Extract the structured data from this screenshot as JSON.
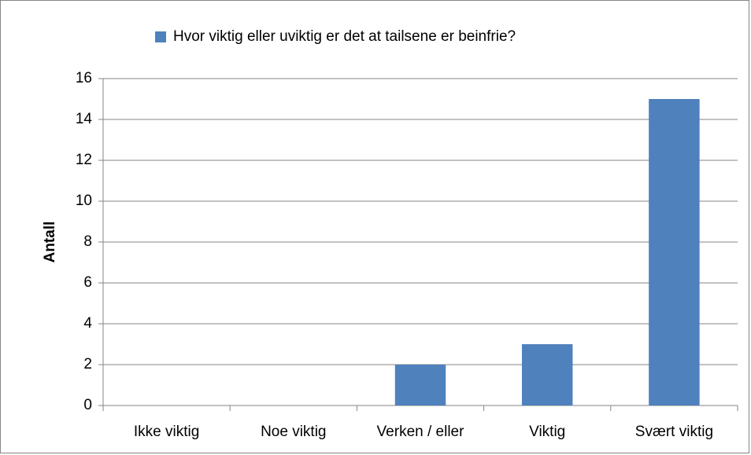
{
  "chart_data": {
    "type": "bar",
    "categories": [
      "Ikke viktig",
      "Noe viktig",
      "Verken / eller",
      "Viktig",
      "Svært viktig"
    ],
    "series": [
      {
        "name": "Hvor viktig eller uviktig er det at tailsene er beinfrie?",
        "color": "#4f81bd",
        "values": [
          0,
          0,
          2,
          3,
          15
        ]
      }
    ],
    "y_label": "Antall",
    "ylim": [
      0,
      16
    ],
    "yticks": [
      0,
      2,
      4,
      6,
      8,
      10,
      12,
      14,
      16
    ],
    "grid": true,
    "legend": "top"
  }
}
